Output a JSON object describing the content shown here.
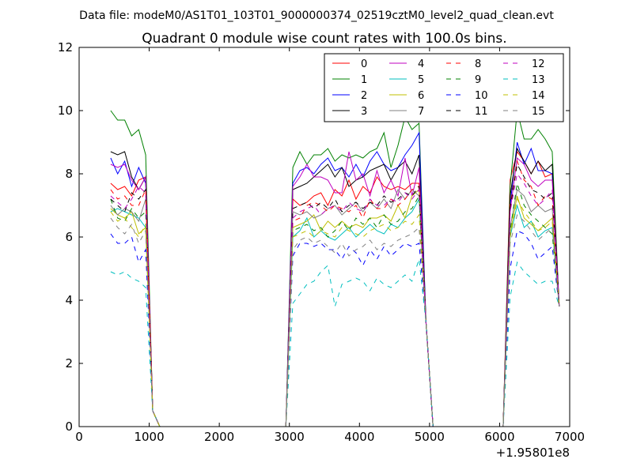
{
  "suptitle": "Data file: modeM0/AS1T01_103T01_9000000374_02519cztM0_level2_quad_clean.evt",
  "chart_data": {
    "type": "line",
    "title": "Quadrant 0 module wise count rates with 100.0s bins.",
    "xlabel": "",
    "ylabel": "",
    "x_offset_label": "+1.95801e8",
    "xlim": [
      0,
      7000
    ],
    "ylim": [
      0,
      12
    ],
    "x_ticks": [
      "0",
      "1000",
      "2000",
      "3000",
      "4000",
      "5000",
      "6000",
      "7000"
    ],
    "y_ticks": [
      "0",
      "2",
      "4",
      "6",
      "8",
      "10",
      "12"
    ],
    "grid": false,
    "legend_position": "top-right",
    "legend_columns": 4,
    "segments": [
      {
        "start": 450,
        "n": 6,
        "lead_in": 0,
        "tail": [
          0.5,
          0
        ]
      },
      {
        "start": 3050,
        "n": 19,
        "lead_in": 2950,
        "tail": [
          3.3,
          0
        ]
      },
      {
        "start": 6150,
        "n": 7,
        "lead_in": 6050,
        "tail": [
          3.8
        ]
      }
    ],
    "zero_ranges": [
      [
        1150,
        2950
      ],
      [
        5050,
        6050
      ]
    ],
    "series": [
      {
        "name": "0",
        "color": "#ff0000",
        "dash": false,
        "values": [
          [
            7.7,
            7.5,
            7.6,
            7.3,
            7.8,
            7.9
          ],
          [
            7.2,
            7.0,
            7.1,
            7.3,
            7.4,
            7.0,
            7.5,
            7.3,
            7.8,
            7.2,
            7.6,
            7.4,
            7.9,
            7.6,
            7.5,
            7.6,
            7.5,
            7.7,
            7.7
          ],
          [
            7.8,
            8.7,
            8.4,
            8.0,
            8.4,
            7.9,
            8.0
          ]
        ]
      },
      {
        "name": "1",
        "color": "#008000",
        "dash": false,
        "values": [
          [
            10.0,
            9.7,
            9.7,
            9.2,
            9.4,
            8.6
          ],
          [
            8.2,
            8.7,
            8.3,
            8.6,
            8.6,
            8.8,
            8.4,
            8.6,
            8.5,
            8.6,
            8.5,
            8.7,
            8.8,
            9.3,
            8.2,
            8.9,
            9.8,
            9.4,
            9.6
          ],
          [
            7.6,
            10.0,
            9.1,
            9.1,
            9.4,
            9.1,
            8.7
          ]
        ]
      },
      {
        "name": "2",
        "color": "#0000ff",
        "dash": false,
        "values": [
          [
            8.5,
            8.0,
            8.4,
            7.6,
            8.2,
            7.7
          ],
          [
            7.7,
            8.1,
            8.2,
            8.0,
            8.3,
            8.5,
            8.1,
            8.2,
            7.9,
            8.3,
            7.9,
            8.4,
            8.7,
            8.3,
            8.1,
            8.2,
            8.6,
            8.9,
            9.3
          ],
          [
            7.0,
            9.0,
            8.3,
            8.8,
            8.1,
            8.1,
            8.0
          ]
        ]
      },
      {
        "name": "3",
        "color": "#000000",
        "dash": false,
        "values": [
          [
            8.7,
            8.6,
            8.7,
            7.9,
            7.5,
            7.9
          ],
          [
            7.5,
            7.6,
            7.7,
            7.9,
            8.1,
            8.3,
            7.9,
            8.2,
            7.6,
            7.8,
            7.9,
            8.1,
            8.2,
            8.3,
            7.8,
            8.2,
            8.4,
            8.0,
            8.6
          ],
          [
            7.3,
            8.8,
            8.4,
            8.0,
            8.4,
            8.1,
            8.3
          ]
        ]
      },
      {
        "name": "4",
        "color": "#bf00bf",
        "dash": false,
        "values": [
          [
            8.3,
            8.2,
            8.3,
            7.8,
            7.5,
            7.9
          ],
          [
            7.6,
            7.9,
            8.3,
            7.9,
            7.9,
            7.8,
            7.4,
            7.4,
            8.7,
            7.8,
            8.0,
            7.3,
            8.1,
            7.4,
            7.8,
            7.3,
            8.5,
            7.3,
            8.2
          ],
          [
            6.8,
            8.5,
            8.3,
            7.8,
            7.6,
            7.8,
            7.8
          ]
        ]
      },
      {
        "name": "5",
        "color": "#00bfbf",
        "dash": false,
        "values": [
          [
            6.8,
            6.9,
            6.8,
            6.7,
            6.6,
            6.3
          ],
          [
            6.0,
            6.2,
            6.6,
            6.0,
            6.2,
            6.0,
            5.9,
            6.1,
            6.3,
            6.0,
            6.2,
            6.4,
            6.2,
            6.1,
            6.4,
            6.3,
            6.6,
            6.8,
            7.2
          ],
          [
            6.0,
            7.0,
            6.3,
            6.5,
            6.0,
            6.2,
            6.3
          ]
        ]
      },
      {
        "name": "6",
        "color": "#bfbf00",
        "dash": false,
        "values": [
          [
            6.9,
            6.7,
            6.6,
            6.8,
            6.1,
            6.3
          ],
          [
            6.3,
            6.4,
            6.5,
            6.7,
            6.2,
            6.5,
            6.3,
            6.5,
            6.3,
            6.4,
            6.3,
            6.6,
            6.6,
            6.7,
            6.5,
            7.0,
            6.6,
            7.3,
            7.5
          ],
          [
            6.1,
            7.3,
            6.6,
            6.4,
            6.2,
            6.4,
            6.6
          ]
        ]
      },
      {
        "name": "7",
        "color": "#808080",
        "dash": false,
        "values": [
          [
            7.0,
            6.7,
            6.9,
            6.8,
            6.5,
            7.2
          ],
          [
            6.8,
            6.7,
            6.8,
            6.6,
            6.7,
            6.9,
            7.0,
            6.7,
            6.9,
            7.1,
            6.8,
            7.1,
            6.9,
            7.2,
            6.9,
            7.5,
            7.2,
            7.5,
            7.3
          ],
          [
            6.3,
            7.5,
            7.3,
            6.8,
            7.0,
            6.8,
            6.9
          ]
        ]
      },
      {
        "name": "8",
        "color": "#ff0000",
        "dash": true,
        "values": [
          [
            7.5,
            7.2,
            7.3,
            7.0,
            7.0,
            7.5
          ],
          [
            6.5,
            6.6,
            7.0,
            7.1,
            7.0,
            6.8,
            7.0,
            6.9,
            6.8,
            7.0,
            6.6,
            7.2,
            6.9,
            6.9,
            7.2,
            7.0,
            7.2,
            7.5,
            7.6
          ],
          [
            7.0,
            8.4,
            7.8,
            7.6,
            7.0,
            7.3,
            7.2
          ]
        ]
      },
      {
        "name": "9",
        "color": "#008000",
        "dash": true,
        "values": [
          [
            7.2,
            6.6,
            6.5,
            6.9,
            6.6,
            6.8
          ],
          [
            6.2,
            6.3,
            6.4,
            6.2,
            6.3,
            6.0,
            6.2,
            6.5,
            6.2,
            6.6,
            6.4,
            6.6,
            6.3,
            6.7,
            6.4,
            6.5,
            6.8,
            6.9,
            7.3
          ],
          [
            6.2,
            7.7,
            7.0,
            6.7,
            6.5,
            6.3,
            6.1
          ]
        ]
      },
      {
        "name": "10",
        "color": "#0000ff",
        "dash": true,
        "values": [
          [
            6.1,
            5.8,
            5.8,
            6.0,
            5.2,
            5.6
          ],
          [
            5.4,
            5.8,
            5.8,
            5.7,
            5.8,
            5.6,
            5.6,
            5.3,
            5.7,
            5.5,
            5.1,
            5.6,
            5.3,
            5.7,
            5.4,
            5.6,
            5.8,
            5.7,
            5.8
          ],
          [
            5.0,
            6.2,
            6.1,
            5.8,
            5.3,
            5.5,
            5.7
          ]
        ]
      },
      {
        "name": "11",
        "color": "#000000",
        "dash": true,
        "values": [
          [
            7.2,
            7.0,
            6.8,
            7.4,
            7.2,
            7.5
          ],
          [
            6.9,
            7.0,
            7.1,
            6.9,
            7.1,
            6.9,
            7.2,
            6.8,
            7.0,
            7.1,
            6.9,
            7.1,
            7.0,
            7.3,
            7.1,
            7.2,
            7.4,
            7.3,
            7.6
          ],
          [
            6.9,
            8.3,
            7.9,
            7.5,
            7.4,
            7.2,
            7.4
          ]
        ]
      },
      {
        "name": "12",
        "color": "#bf00bf",
        "dash": true,
        "values": [
          [
            7.3,
            7.1,
            6.9,
            7.2,
            7.6,
            7.4
          ],
          [
            6.6,
            6.8,
            6.9,
            7.0,
            6.7,
            6.9,
            7.0,
            6.8,
            7.1,
            6.9,
            6.8,
            7.2,
            7.0,
            7.0,
            7.2,
            7.1,
            7.4,
            7.2,
            7.5
          ],
          [
            6.8,
            8.0,
            7.7,
            7.3,
            7.0,
            7.2,
            7.5
          ]
        ]
      },
      {
        "name": "13",
        "color": "#00bfbf",
        "dash": true,
        "values": [
          [
            4.9,
            4.8,
            4.9,
            4.7,
            4.6,
            4.4
          ],
          [
            3.9,
            4.2,
            4.5,
            4.6,
            4.9,
            5.1,
            3.8,
            4.5,
            4.6,
            4.7,
            4.6,
            4.3,
            4.7,
            4.5,
            4.4,
            4.6,
            4.8,
            4.6,
            5.3
          ],
          [
            4.1,
            5.2,
            4.9,
            4.7,
            4.5,
            4.6,
            4.6
          ]
        ]
      },
      {
        "name": "14",
        "color": "#bfbf00",
        "dash": true,
        "values": [
          [
            6.8,
            6.5,
            6.6,
            6.3,
            6.0,
            6.4
          ],
          [
            6.0,
            6.1,
            6.2,
            6.0,
            6.2,
            6.1,
            6.0,
            6.3,
            6.2,
            6.1,
            6.0,
            6.2,
            6.3,
            6.4,
            6.2,
            6.3,
            6.5,
            6.4,
            6.7
          ],
          [
            6.0,
            7.2,
            6.8,
            6.5,
            6.2,
            6.3,
            6.5
          ]
        ]
      },
      {
        "name": "15",
        "color": "#808080",
        "dash": true,
        "values": [
          [
            6.6,
            6.3,
            6.1,
            6.4,
            5.8,
            6.2
          ],
          [
            5.6,
            5.9,
            6.0,
            5.8,
            5.9,
            5.7,
            5.5,
            5.8,
            5.4,
            5.6,
            5.7,
            5.9,
            5.6,
            5.8,
            5.7,
            5.9,
            6.0,
            6.1,
            6.3
          ],
          [
            5.8,
            6.7,
            6.5,
            6.2,
            5.9,
            6.1,
            6.3
          ]
        ]
      }
    ]
  }
}
